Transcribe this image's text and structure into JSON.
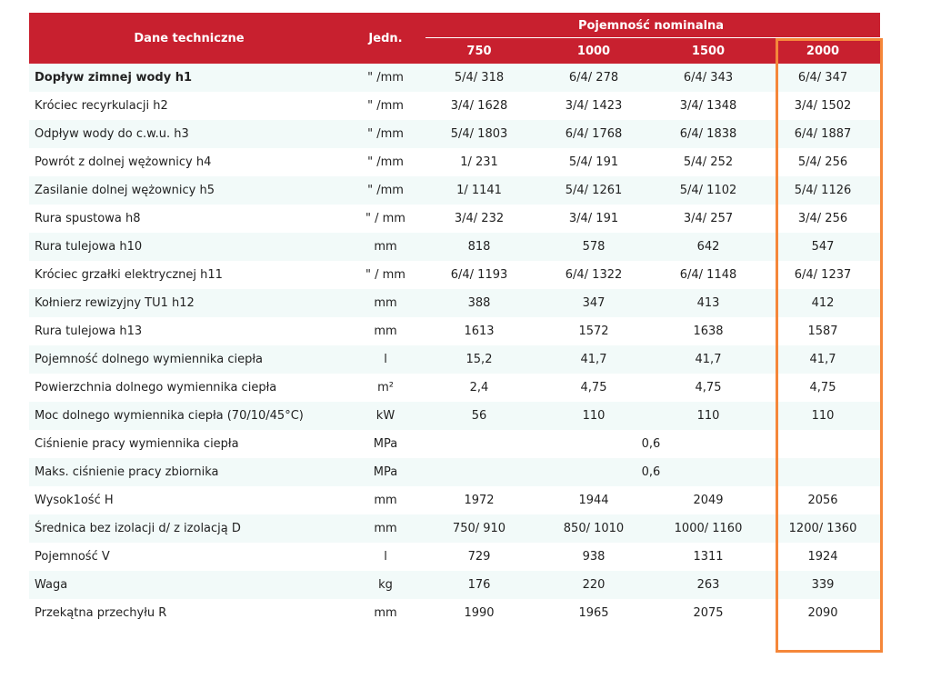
{
  "table": {
    "header": {
      "label_col": "Dane techniczne",
      "unit_col": "Jedn.",
      "group": "Pojemność nominalna",
      "capacities": [
        "750",
        "1000",
        "1500",
        "2000"
      ]
    },
    "rows": [
      {
        "label": "Dopływ zimnej wody h1",
        "unit": "\" /mm",
        "values": [
          "5/4/ 318",
          "6/4/ 278",
          "6/4/ 343",
          "6/4/ 347"
        ],
        "bold": true
      },
      {
        "label": "Króciec recyrkulacji h2",
        "unit": "\" /mm",
        "values": [
          "3/4/ 1628",
          "3/4/ 1423",
          "3/4/ 1348",
          "3/4/ 1502"
        ]
      },
      {
        "label": "Odpływ wody do c.w.u. h3",
        "unit": "\" /mm",
        "values": [
          "5/4/ 1803",
          "6/4/ 1768",
          "6/4/ 1838",
          "6/4/ 1887"
        ]
      },
      {
        "label": "Powrót z dolnej wężownicy h4",
        "unit": "\" /mm",
        "values": [
          "1/ 231",
          "5/4/ 191",
          "5/4/ 252",
          "5/4/ 256"
        ]
      },
      {
        "label": "Zasilanie dolnej wężownicy h5",
        "unit": "\" /mm",
        "values": [
          "1/ 1141",
          "5/4/ 1261",
          "5/4/ 1102",
          "5/4/ 1126"
        ]
      },
      {
        "label": "Rura spustowa h8",
        "unit": "\" / mm",
        "values": [
          "3/4/ 232",
          "3/4/ 191",
          "3/4/ 257",
          "3/4/ 256"
        ]
      },
      {
        "label": "Rura tulejowa h10",
        "unit": "mm",
        "values": [
          "818",
          "578",
          "642",
          "547"
        ]
      },
      {
        "label": "Króciec grzałki elektrycznej h11",
        "unit": "\" / mm",
        "values": [
          "6/4/ 1193",
          "6/4/ 1322",
          "6/4/ 1148",
          "6/4/ 1237"
        ]
      },
      {
        "label": "Kołnierz rewizyjny TU1 h12",
        "unit": "mm",
        "values": [
          "388",
          "347",
          "413",
          "412"
        ]
      },
      {
        "label": "Rura tulejowa h13",
        "unit": "mm",
        "values": [
          "1613",
          "1572",
          "1638",
          "1587"
        ]
      },
      {
        "label": "Pojemność dolnego wymiennika ciepła",
        "unit": "l",
        "values": [
          "15,2",
          "41,7",
          "41,7",
          "41,7"
        ]
      },
      {
        "label": "Powierzchnia dolnego wymiennika ciepła",
        "unit": "m²",
        "values": [
          "2,4",
          "4,75",
          "4,75",
          "4,75"
        ]
      },
      {
        "label": "Moc dolnego wymiennika ciepła (70/10/45°C)",
        "unit": "kW",
        "values": [
          "56",
          "110",
          "110",
          "110"
        ]
      },
      {
        "label": "Ciśnienie pracy wymiennika ciepła",
        "unit": "MPa",
        "merged": "0,6"
      },
      {
        "label": "Maks. ciśnienie pracy zbiornika",
        "unit": "MPa",
        "merged": "0,6"
      },
      {
        "label": "Wysok1ość H",
        "unit": "mm",
        "values": [
          "1972",
          "1944",
          "2049",
          "2056"
        ]
      },
      {
        "label": "Średnica bez izolacji d/ z izolacją D",
        "unit": "mm",
        "values": [
          "750/ 910",
          "850/ 1010",
          "1000/ 1160",
          "1200/ 1360"
        ]
      },
      {
        "label": "Pojemność V",
        "unit": "l",
        "values": [
          "729",
          "938",
          "1311",
          "1924"
        ]
      },
      {
        "label": "Waga",
        "unit": "kg",
        "values": [
          "176",
          "220",
          "263",
          "339"
        ]
      },
      {
        "label": "Przekątna przechyłu R",
        "unit": "mm",
        "values": [
          "1990",
          "1965",
          "2075",
          "2090"
        ]
      }
    ]
  },
  "colors": {
    "header_bg": "#c8202f",
    "stripe_bg": "#f2faf9",
    "highlight_border": "#f5873a"
  }
}
